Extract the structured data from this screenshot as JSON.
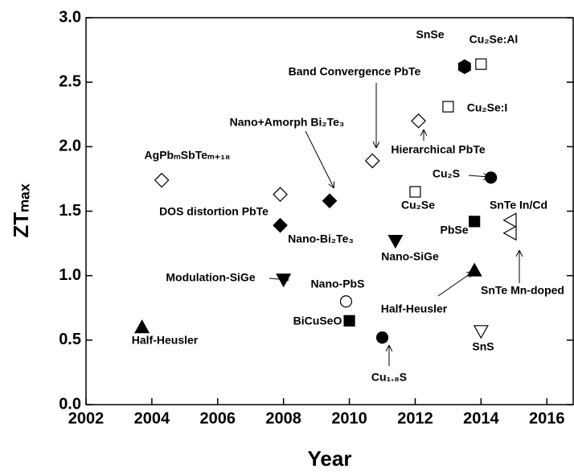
{
  "chart_data": {
    "type": "scatter",
    "xlabel": "Year",
    "ylabel": "ZTₘₐₓ",
    "xlim": [
      2002,
      2016.8
    ],
    "ylim": [
      0,
      3
    ],
    "xticks": [
      2002,
      2004,
      2006,
      2008,
      2010,
      2012,
      2014,
      2016
    ],
    "yticks": [
      {
        "value": 0,
        "label": "0.0"
      },
      0.5,
      {
        "value": 1,
        "label": "1.0"
      },
      1.5,
      {
        "value": 2,
        "label": "2.0"
      },
      2.5,
      {
        "value": 3,
        "label": "3.0"
      }
    ],
    "color": "#000000",
    "points": [
      {
        "label": "Half-Heusler",
        "x": 2003.7,
        "y": 0.6,
        "marker": "triangle-up",
        "filled": true
      },
      {
        "label": "AgPbₘSbTeₘ₊₁₈",
        "x": 2004.3,
        "y": 1.74,
        "marker": "diamond",
        "filled": false
      },
      {
        "label": "DOS distortion PbTe",
        "x": 2007.9,
        "y": 1.63,
        "marker": "diamond",
        "filled": false
      },
      {
        "label": "Nano-Bi₂Te₃",
        "x": 2007.9,
        "y": 1.39,
        "marker": "diamond",
        "filled": true
      },
      {
        "label": "Nano+Amorph Bi₂Te₃",
        "x": 2009.4,
        "y": 1.58,
        "marker": "diamond",
        "filled": true
      },
      {
        "label": "Modulation-SiGe",
        "x": 2008.0,
        "y": 0.97,
        "marker": "triangle-down",
        "filled": true
      },
      {
        "label": "Nano-PbS",
        "x": 2009.9,
        "y": 0.8,
        "marker": "circle",
        "filled": false
      },
      {
        "label": "BiCuSeO",
        "x": 2010.0,
        "y": 0.65,
        "marker": "square",
        "filled": true
      },
      {
        "label": "Cu₁.₈S",
        "x": 2011.0,
        "y": 0.52,
        "marker": "circle",
        "filled": true
      },
      {
        "label": "Nano-SiGe",
        "x": 2011.4,
        "y": 1.27,
        "marker": "triangle-down",
        "filled": true
      },
      {
        "label": "Band Convergence PbTe",
        "x": 2010.7,
        "y": 1.89,
        "marker": "diamond",
        "filled": false
      },
      {
        "label": "Hierarchical PbTe",
        "x": 2012.1,
        "y": 2.2,
        "marker": "diamond",
        "filled": false
      },
      {
        "label": "Cu₂Se",
        "x": 2012.0,
        "y": 1.65,
        "marker": "square",
        "filled": false
      },
      {
        "label": "SnSe",
        "x": 2013.5,
        "y": 2.62,
        "marker": "hexagon",
        "filled": true
      },
      {
        "label": "Cu₂Se:Al",
        "x": 2014.0,
        "y": 2.64,
        "marker": "square",
        "filled": false
      },
      {
        "label": "Cu₂Se:I",
        "x": 2013.0,
        "y": 2.31,
        "marker": "square",
        "filled": false
      },
      {
        "label": "Cu₂S",
        "x": 2014.3,
        "y": 1.76,
        "marker": "circle",
        "filled": true
      },
      {
        "label": "PbSe",
        "x": 2013.8,
        "y": 1.42,
        "marker": "square",
        "filled": true
      },
      {
        "label": "SnTe In/Cd",
        "x": 2014.9,
        "y": 1.43,
        "marker": "triangle-left",
        "filled": false
      },
      {
        "label": "SnTe Mn-doped",
        "x": 2014.9,
        "y": 1.33,
        "marker": "triangle-left",
        "filled": false
      },
      {
        "label": "Half-Heusler",
        "x": 2013.8,
        "y": 1.04,
        "marker": "triangle-up",
        "filled": true
      },
      {
        "label": "SnS",
        "x": 2014.0,
        "y": 0.57,
        "marker": "triangle-down",
        "filled": false
      }
    ]
  }
}
